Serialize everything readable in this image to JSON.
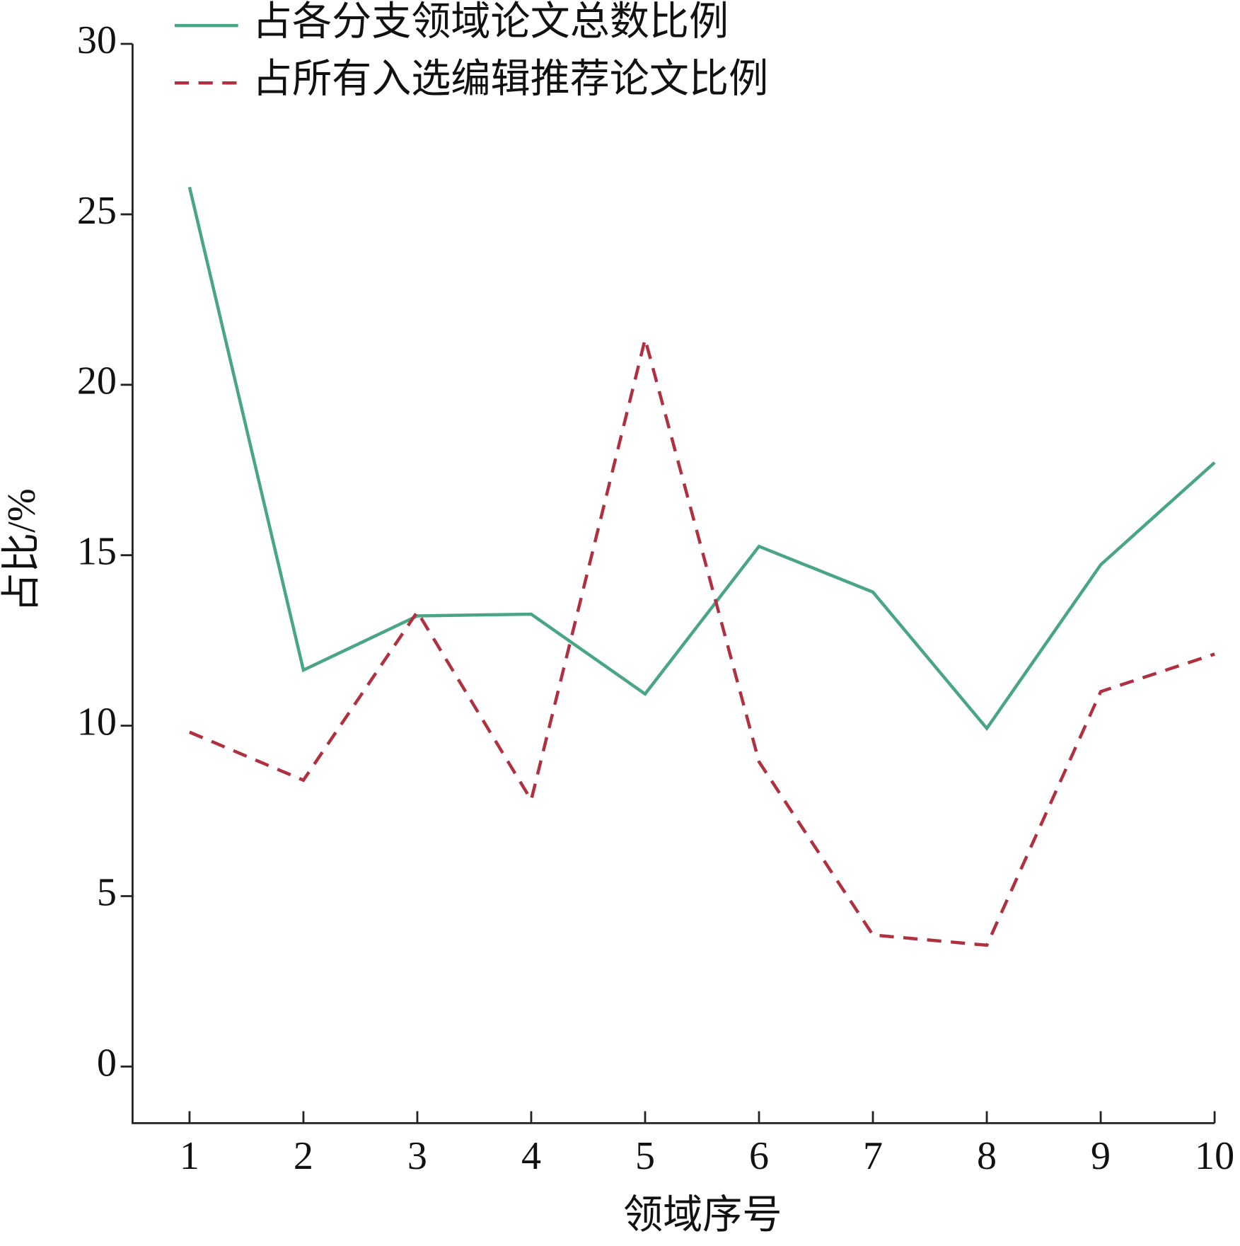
{
  "chart_data": {
    "type": "line",
    "x_label": "领域序号",
    "y_label": "占比/%",
    "x": [
      1,
      2,
      3,
      4,
      5,
      6,
      7,
      8,
      9,
      10
    ],
    "series": [
      {
        "name": "占各分支领域论文总数比例",
        "color": "#4aa585",
        "dash": false,
        "values": [
          25.8,
          11.63,
          13.22,
          13.27,
          10.93,
          15.26,
          13.92,
          9.92,
          14.72,
          17.72
        ]
      },
      {
        "name": "占所有入选编辑推荐论文比例",
        "color": "#b03040",
        "dash": true,
        "values": [
          9.81,
          8.4,
          13.34,
          7.82,
          21.34,
          8.94,
          3.86,
          3.56,
          11.0,
          12.1
        ]
      }
    ],
    "xlim": [
      0.5,
      10
    ],
    "ylim": [
      -1.66,
      30
    ],
    "xticks": [
      1,
      2,
      3,
      4,
      5,
      6,
      7,
      8,
      9,
      10
    ],
    "yticks": [
      0,
      5,
      10,
      15,
      20,
      25,
      30
    ],
    "legend": "top-left"
  }
}
